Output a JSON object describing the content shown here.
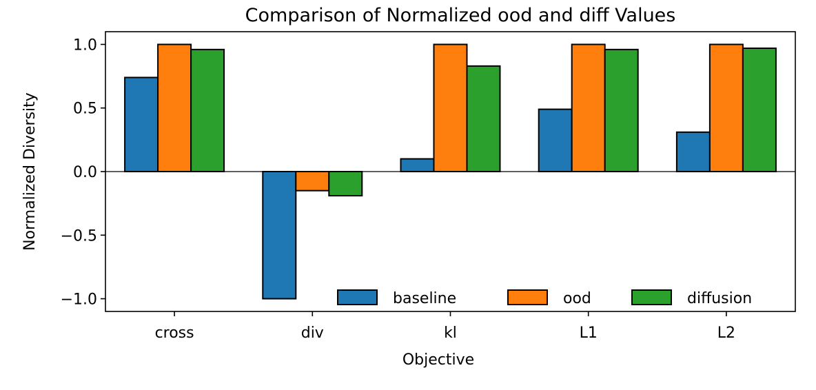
{
  "chart_data": {
    "type": "bar",
    "title": "Comparison of Normalized ood and diff Values",
    "xlabel": "Objective",
    "ylabel": "Normalized Diversity",
    "categories": [
      "cross",
      "div",
      "kl",
      "L1",
      "L2"
    ],
    "series": [
      {
        "name": "baseline",
        "color": "#1f77b4",
        "values": [
          0.74,
          -1.0,
          0.1,
          0.49,
          0.31
        ]
      },
      {
        "name": "ood",
        "color": "#ff7f0e",
        "values": [
          1.0,
          -0.15,
          1.0,
          1.0,
          1.0
        ]
      },
      {
        "name": "diffusion",
        "color": "#2ca02c",
        "values": [
          0.96,
          -0.19,
          0.83,
          0.96,
          0.97
        ]
      }
    ],
    "ylim": [
      -1.1,
      1.1
    ],
    "yticks": [
      -1.0,
      -0.5,
      0.0,
      0.5,
      1.0
    ],
    "ytick_labels": [
      "−1.0",
      "−0.5",
      "0.0",
      "0.5",
      "1.0"
    ],
    "legend": {
      "location": "lower-right",
      "columns": 3
    },
    "zero_line": true,
    "grid": false
  }
}
